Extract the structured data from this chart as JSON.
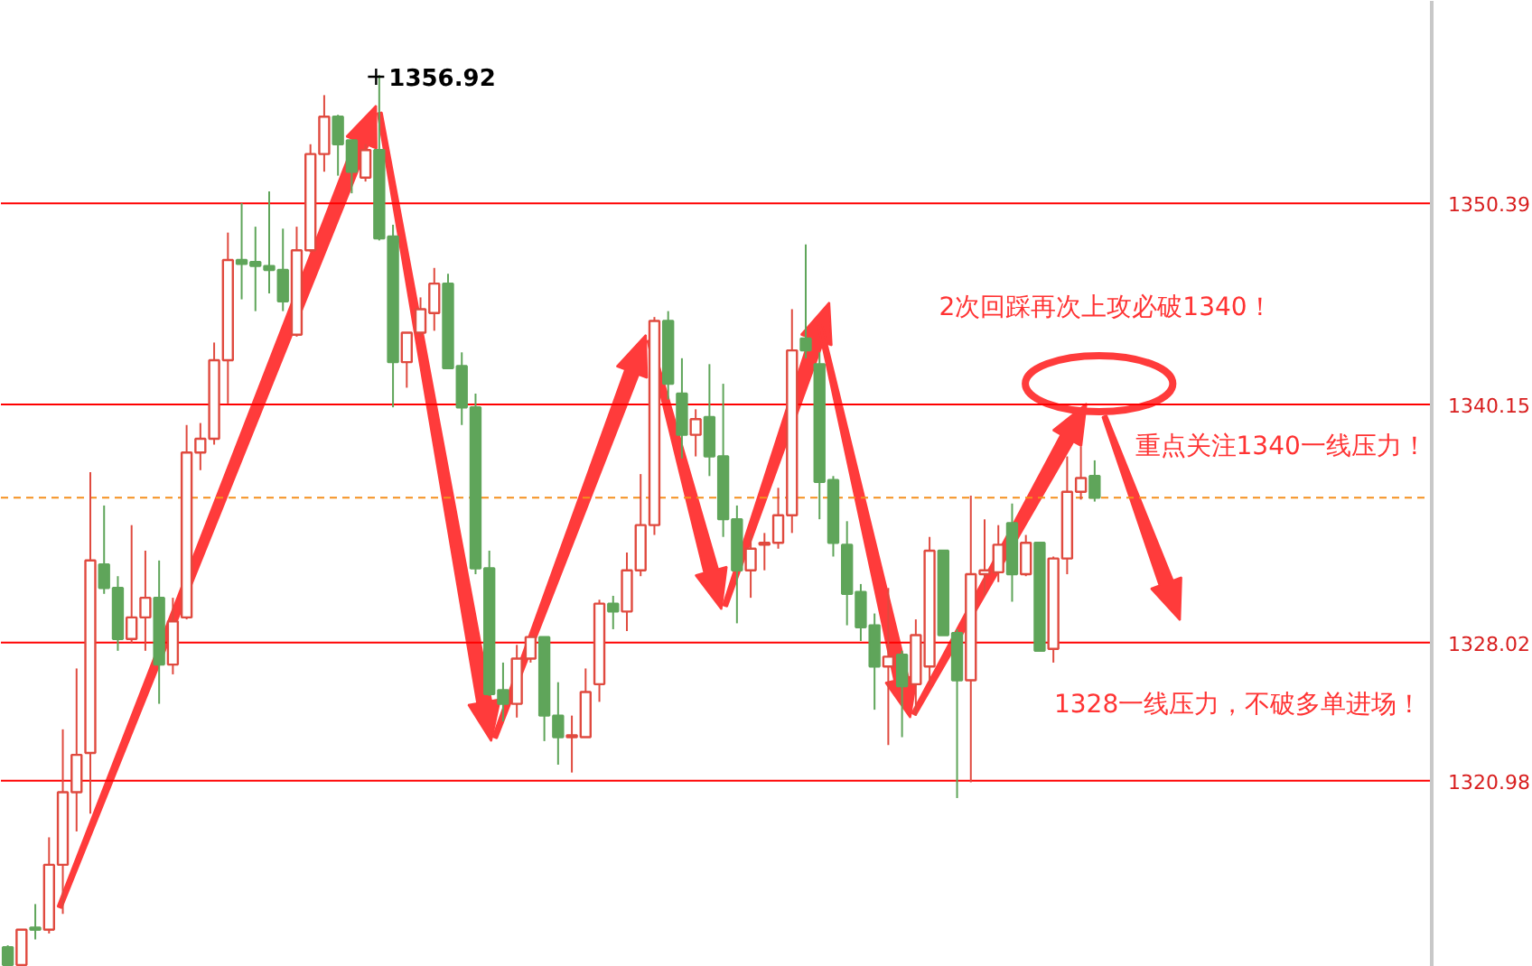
{
  "chart_data": {
    "type": "candlestick",
    "categories": [
      null,
      null,
      null,
      null,
      null,
      null,
      null,
      null,
      null,
      null,
      null,
      null,
      null,
      null,
      null,
      null,
      null,
      null,
      null,
      null,
      null,
      null,
      null,
      null,
      null,
      null,
      null,
      null,
      null,
      null,
      null,
      null,
      null,
      null,
      null,
      null,
      null,
      null,
      null,
      null,
      null,
      null,
      null,
      null,
      null,
      null,
      null,
      null,
      null,
      null,
      null,
      null,
      null,
      null,
      null,
      null,
      null,
      null,
      null,
      null,
      null,
      null,
      null,
      null,
      null,
      null,
      null,
      null,
      null,
      null,
      null,
      null,
      null,
      null,
      null,
      null,
      null,
      null,
      null,
      null,
      null,
      null,
      null,
      null,
      null,
      null,
      null,
      null,
      null,
      null,
      null,
      null,
      null,
      null,
      null,
      null,
      null,
      null,
      null,
      null,
      null,
      null,
      null,
      null
    ],
    "ohlc": [
      [
        1312.5,
        1312.6,
        1311.6,
        1311.6
      ],
      [
        1311.6,
        1313.4,
        1311.6,
        1313.4
      ],
      [
        1313.5,
        1314.7,
        1312.9,
        1313.4
      ],
      [
        1313.4,
        1318.1,
        1313.2,
        1316.7
      ],
      [
        1316.7,
        1323.6,
        1314.2,
        1320.4
      ],
      [
        1320.4,
        1326.7,
        1318.4,
        1322.3
      ],
      [
        1322.4,
        1336.7,
        1319.3,
        1332.2
      ],
      [
        1332.0,
        1335.0,
        1330.5,
        1330.8
      ],
      [
        1330.8,
        1331.4,
        1327.6,
        1328.2
      ],
      [
        1328.2,
        1334.0,
        1328.0,
        1329.3
      ],
      [
        1329.3,
        1332.7,
        1327.6,
        1330.3
      ],
      [
        1330.3,
        1332.2,
        1324.9,
        1326.9
      ],
      [
        1326.9,
        1330.3,
        1326.4,
        1329.1
      ],
      [
        1329.3,
        1339.1,
        1329.2,
        1337.7
      ],
      [
        1337.7,
        1339.2,
        1336.8,
        1338.4
      ],
      [
        1338.4,
        1343.3,
        1338.1,
        1342.4
      ],
      [
        1342.4,
        1348.9,
        1340.2,
        1347.5
      ],
      [
        1347.5,
        1350.4,
        1345.5,
        1347.3
      ],
      [
        1347.4,
        1349.2,
        1344.9,
        1347.2
      ],
      [
        1347.2,
        1351.0,
        1345.8,
        1347.0
      ],
      [
        1347.0,
        1349.1,
        1344.9,
        1345.4
      ],
      [
        1343.7,
        1349.2,
        1343.6,
        1348.0
      ],
      [
        1348.0,
        1353.4,
        1347.9,
        1352.9
      ],
      [
        1352.9,
        1355.9,
        1352.0,
        1354.8
      ],
      [
        1354.8,
        1354.9,
        1351.8,
        1353.4
      ],
      [
        1353.6,
        1353.6,
        1350.9,
        1352.0
      ],
      [
        1351.7,
        1353.4,
        1351.5,
        1353.1
      ],
      [
        1353.1,
        1356.92,
        1348.5,
        1348.6
      ],
      [
        1348.7,
        1349.3,
        1340.0,
        1342.3
      ],
      [
        1342.3,
        1343.8,
        1341.0,
        1343.8
      ],
      [
        1343.8,
        1345.6,
        1343.6,
        1345.0
      ],
      [
        1344.8,
        1347.1,
        1343.9,
        1346.3
      ],
      [
        1346.3,
        1346.8,
        1342.0,
        1342.0
      ],
      [
        1342.1,
        1342.8,
        1339.1,
        1340.0
      ],
      [
        1340.0,
        1340.7,
        1331.5,
        1331.8
      ],
      [
        1331.8,
        1332.7,
        1325.3,
        1325.4
      ],
      [
        1325.6,
        1327.0,
        1324.0,
        1324.9
      ],
      [
        1324.9,
        1327.9,
        1324.2,
        1327.2
      ],
      [
        1327.2,
        1328.3,
        1327.0,
        1328.3
      ],
      [
        1328.3,
        1328.3,
        1323.0,
        1324.3
      ],
      [
        1324.3,
        1326.0,
        1321.8,
        1323.2
      ],
      [
        1323.2,
        1324.3,
        1321.4,
        1323.3
      ],
      [
        1323.2,
        1326.7,
        1323.2,
        1325.5
      ],
      [
        1325.9,
        1330.2,
        1325.0,
        1330.0
      ],
      [
        1330.0,
        1330.4,
        1328.7,
        1329.6
      ],
      [
        1329.6,
        1332.6,
        1328.6,
        1331.7
      ],
      [
        1331.7,
        1336.6,
        1331.4,
        1334.0
      ],
      [
        1334.0,
        1344.6,
        1333.5,
        1344.4
      ],
      [
        1344.4,
        1344.9,
        1340.4,
        1341.2
      ],
      [
        1340.7,
        1342.5,
        1337.4,
        1338.6
      ],
      [
        1338.6,
        1339.9,
        1337.5,
        1339.4
      ],
      [
        1339.5,
        1342.2,
        1336.5,
        1337.5
      ],
      [
        1337.5,
        1341.2,
        1333.4,
        1334.3
      ],
      [
        1334.3,
        1335.0,
        1329.0,
        1331.7
      ],
      [
        1331.7,
        1333.6,
        1330.3,
        1332.8
      ],
      [
        1333.0,
        1333.6,
        1331.7,
        1333.1
      ],
      [
        1333.1,
        1335.9,
        1332.8,
        1334.5
      ],
      [
        1334.5,
        1345.0,
        1333.6,
        1342.9
      ],
      [
        1343.5,
        1348.3,
        1342.5,
        1342.9
      ],
      [
        1342.2,
        1342.8,
        1334.3,
        1336.2
      ],
      [
        1336.3,
        1336.5,
        1332.4,
        1333.1
      ],
      [
        1333.0,
        1334.2,
        1328.9,
        1330.5
      ],
      [
        1330.6,
        1331.0,
        1328.1,
        1328.8
      ],
      [
        1328.9,
        1329.5,
        1324.6,
        1326.8
      ],
      [
        1326.8,
        1330.8,
        1322.8,
        1327.3
      ],
      [
        1327.4,
        1327.6,
        1323.2,
        1325.8
      ],
      [
        1325.9,
        1329.2,
        1324.3,
        1328.4
      ],
      [
        1326.8,
        1333.4,
        1325.8,
        1332.7
      ],
      [
        1332.7,
        1332.7,
        1328.4,
        1328.4
      ],
      [
        1328.5,
        1328.7,
        1320.1,
        1326.1
      ],
      [
        1326.1,
        1335.5,
        1320.9,
        1331.5
      ],
      [
        1331.5,
        1334.3,
        1330.4,
        1331.7
      ],
      [
        1331.6,
        1334.0,
        1331.1,
        1333.0
      ],
      [
        1334.1,
        1335.1,
        1330.1,
        1331.5
      ],
      [
        1331.5,
        1333.5,
        1331.4,
        1333.1
      ],
      [
        1333.1,
        1333.1,
        1327.6,
        1327.6
      ],
      [
        1327.7,
        1332.4,
        1327.0,
        1332.3
      ],
      [
        1332.3,
        1337.5,
        1331.5,
        1335.7
      ],
      [
        1335.7,
        1338.0,
        1335.3,
        1336.4
      ],
      [
        1336.5,
        1337.3,
        1335.2,
        1335.4
      ],
      null,
      null,
      null,
      null,
      null,
      null,
      null,
      null,
      null,
      null,
      null,
      null,
      null,
      null,
      null,
      null,
      null,
      null,
      null,
      null,
      null,
      null,
      null,
      null
    ],
    "colors": [
      "#5fa55a",
      "#e04a3f",
      "#5fa55a",
      "#e04a3f",
      "#e04a3f",
      "#e04a3f",
      "#e04a3f",
      "#5fa55a",
      "#5fa55a",
      "#e04a3f",
      "#e04a3f",
      "#5fa55a",
      "#e04a3f",
      "#e04a3f",
      "#e04a3f",
      "#e04a3f",
      "#e04a3f",
      "#5fa55a",
      "#5fa55a",
      "#5fa55a",
      "#5fa55a",
      "#e04a3f",
      "#e04a3f",
      "#e04a3f",
      "#5fa55a",
      "#5fa55a",
      "#e04a3f",
      "#5fa55a",
      "#5fa55a",
      "#e04a3f",
      "#e04a3f",
      "#e04a3f",
      "#5fa55a",
      "#5fa55a",
      "#5fa55a",
      "#5fa55a",
      "#5fa55a",
      "#e04a3f",
      "#e04a3f",
      "#5fa55a",
      "#5fa55a",
      "#e04a3f",
      "#e04a3f",
      "#e04a3f",
      "#5fa55a",
      "#e04a3f",
      "#e04a3f",
      "#e04a3f",
      "#5fa55a",
      "#5fa55a",
      "#e04a3f",
      "#5fa55a",
      "#5fa55a",
      "#5fa55a",
      "#e04a3f",
      "#e04a3f",
      "#e04a3f",
      "#e04a3f",
      "#5fa55a",
      "#5fa55a",
      "#5fa55a",
      "#5fa55a",
      "#5fa55a",
      "#5fa55a",
      "#e04a3f",
      "#5fa55a",
      "#e04a3f",
      "#e04a3f",
      "#5fa55a",
      "#5fa55a",
      "#e04a3f",
      "#e04a3f",
      "#e04a3f",
      "#5fa55a",
      "#e04a3f",
      "#5fa55a",
      "#e04a3f",
      "#e04a3f",
      "#e04a3f",
      "#5fa55a",
      null,
      null,
      null,
      null,
      null,
      null,
      null,
      null,
      null,
      null,
      null,
      null,
      null,
      null,
      null,
      null,
      null,
      null,
      null,
      null,
      null,
      null,
      null,
      null
    ],
    "ylim": [
      1311.5,
      1360.7
    ],
    "yticks": [
      1320.98,
      1328.02,
      1340.15,
      1350.39
    ],
    "tick_labels": "y",
    "grid": false,
    "ref_lines": [
      {
        "axis": "y",
        "value": 1350.39,
        "color": "#ff0000"
      },
      {
        "axis": "y",
        "value": 1340.15,
        "color": "#ff0000"
      },
      {
        "axis": "y",
        "value": 1328.02,
        "color": "#ff0000"
      },
      {
        "axis": "y",
        "value": 1320.98,
        "color": "#ff0000"
      },
      {
        "axis": "y",
        "value": 1335.4,
        "color": "#f5901e",
        "line_style": "dashed"
      }
    ],
    "annotations": [
      "1356.92",
      "2次回踩再次上攻必破1340！",
      "重点关注1340一线压力！",
      "1328一线压力，不破多单进场！"
    ]
  }
}
